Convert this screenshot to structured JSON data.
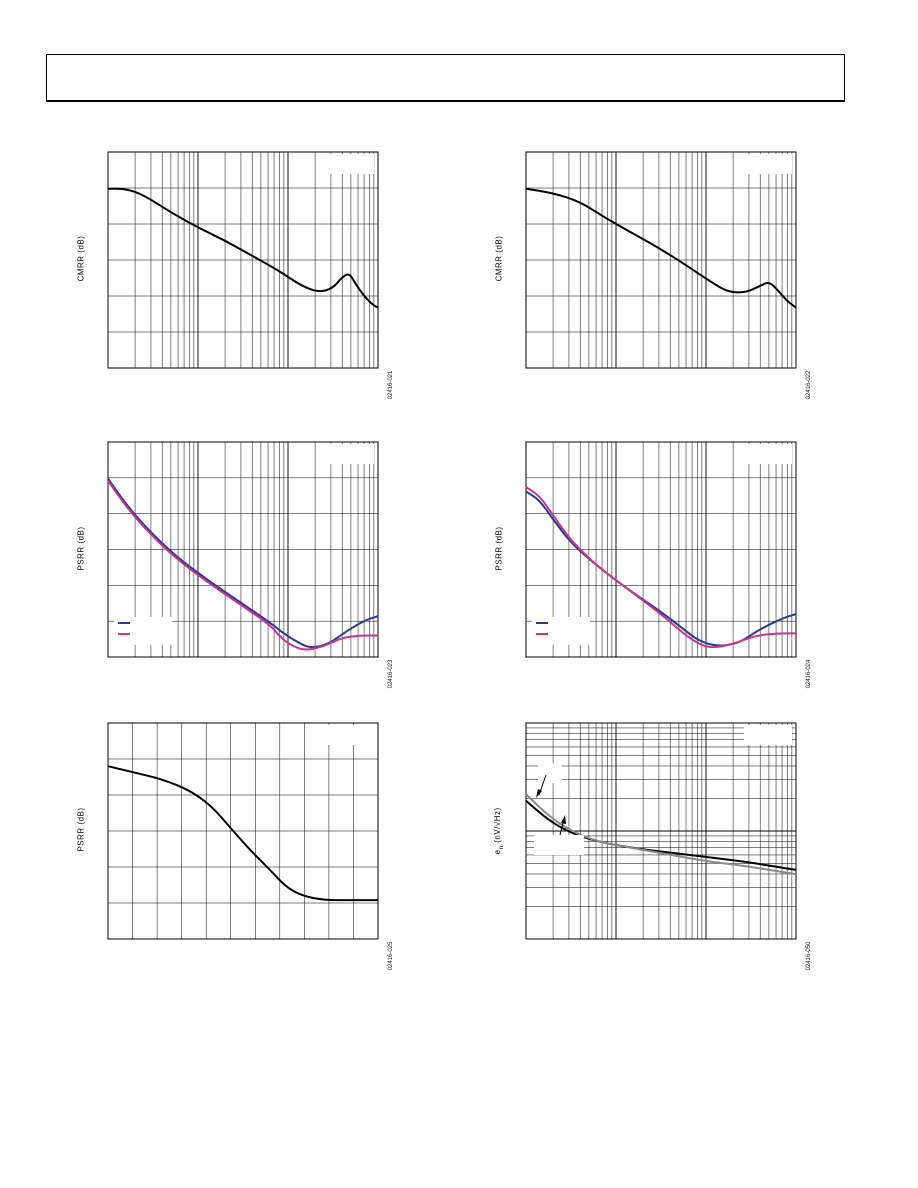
{
  "page": {
    "header": ""
  },
  "chart_data": [
    {
      "id": "c1",
      "type": "line",
      "xscale": "log",
      "decades": 3,
      "ylabel": "CMRR (dB)",
      "figure_code": "02416-021",
      "series": [
        {
          "color": "#000000",
          "y": [
            [
              0,
              0.17
            ],
            [
              0.2,
              0.17
            ],
            [
              0.4,
              0.2
            ],
            [
              0.7,
              0.28
            ],
            [
              1.0,
              0.35
            ],
            [
              1.3,
              0.41
            ],
            [
              1.6,
              0.48
            ],
            [
              1.9,
              0.55
            ],
            [
              2.15,
              0.62
            ],
            [
              2.35,
              0.65
            ],
            [
              2.5,
              0.63
            ],
            [
              2.6,
              0.58
            ],
            [
              2.68,
              0.56
            ],
            [
              2.75,
              0.61
            ],
            [
              2.85,
              0.67
            ],
            [
              2.95,
              0.71
            ],
            [
              3.0,
              0.72
            ]
          ]
        }
      ]
    },
    {
      "id": "c2",
      "type": "line",
      "xscale": "log",
      "decades": 3,
      "ylabel": "CMRR (dB)",
      "figure_code": "02416-022",
      "series": [
        {
          "color": "#000000",
          "y": [
            [
              0,
              0.17
            ],
            [
              0.3,
              0.19
            ],
            [
              0.6,
              0.23
            ],
            [
              0.9,
              0.31
            ],
            [
              1.2,
              0.38
            ],
            [
              1.5,
              0.45
            ],
            [
              1.8,
              0.53
            ],
            [
              2.05,
              0.6
            ],
            [
              2.25,
              0.65
            ],
            [
              2.45,
              0.65
            ],
            [
              2.6,
              0.62
            ],
            [
              2.7,
              0.6
            ],
            [
              2.8,
              0.64
            ],
            [
              2.9,
              0.69
            ],
            [
              3.0,
              0.72
            ]
          ]
        }
      ]
    },
    {
      "id": "c3",
      "type": "line",
      "xscale": "log",
      "decades": 3,
      "ylabel": "PSRR (dB)",
      "figure_code": "02416-023",
      "series": [
        {
          "color": "#2b3a8f",
          "y": [
            [
              0,
              0.17
            ],
            [
              0.2,
              0.29
            ],
            [
              0.45,
              0.41
            ],
            [
              0.75,
              0.53
            ],
            [
              1.1,
              0.64
            ],
            [
              1.45,
              0.74
            ],
            [
              1.8,
              0.84
            ],
            [
              1.95,
              0.89
            ],
            [
              2.1,
              0.93
            ],
            [
              2.25,
              0.96
            ],
            [
              2.45,
              0.94
            ],
            [
              2.65,
              0.88
            ],
            [
              2.85,
              0.83
            ],
            [
              3.0,
              0.81
            ]
          ]
        },
        {
          "color": "#c2368f",
          "y": [
            [
              0,
              0.18
            ],
            [
              0.2,
              0.3
            ],
            [
              0.45,
              0.42
            ],
            [
              0.75,
              0.54
            ],
            [
              1.1,
              0.65
            ],
            [
              1.45,
              0.75
            ],
            [
              1.8,
              0.85
            ],
            [
              1.92,
              0.91
            ],
            [
              2.05,
              0.95
            ],
            [
              2.2,
              0.97
            ],
            [
              2.4,
              0.95
            ],
            [
              2.6,
              0.91
            ],
            [
              2.8,
              0.9
            ],
            [
              3.0,
              0.9
            ]
          ]
        }
      ],
      "legend": [
        {
          "color": "#2b3a8f"
        },
        {
          "color": "#c2368f"
        }
      ]
    },
    {
      "id": "c4",
      "type": "line",
      "xscale": "log",
      "decades": 3,
      "ylabel": "PSRR (dB)",
      "figure_code": "02416-024",
      "series": [
        {
          "color": "#2b3a8f",
          "y": [
            [
              0,
              0.23
            ],
            [
              0.15,
              0.27
            ],
            [
              0.3,
              0.36
            ],
            [
              0.5,
              0.47
            ],
            [
              0.8,
              0.58
            ],
            [
              1.15,
              0.69
            ],
            [
              1.5,
              0.79
            ],
            [
              1.75,
              0.87
            ],
            [
              1.9,
              0.92
            ],
            [
              2.1,
              0.95
            ],
            [
              2.35,
              0.94
            ],
            [
              2.6,
              0.87
            ],
            [
              2.85,
              0.82
            ],
            [
              3.0,
              0.8
            ]
          ]
        },
        {
          "color": "#c2368f",
          "y": [
            [
              0,
              0.21
            ],
            [
              0.15,
              0.25
            ],
            [
              0.3,
              0.34
            ],
            [
              0.5,
              0.46
            ],
            [
              0.8,
              0.58
            ],
            [
              1.15,
              0.69
            ],
            [
              1.5,
              0.8
            ],
            [
              1.72,
              0.88
            ],
            [
              1.88,
              0.93
            ],
            [
              2.05,
              0.96
            ],
            [
              2.3,
              0.94
            ],
            [
              2.55,
              0.9
            ],
            [
              2.8,
              0.89
            ],
            [
              3.0,
              0.89
            ]
          ]
        }
      ],
      "legend": [
        {
          "color": "#2b3a8f"
        },
        {
          "color": "#c2368f"
        }
      ]
    },
    {
      "id": "c5",
      "type": "line",
      "xscale": "linear",
      "xdiv": 11,
      "ydiv": 6,
      "ylabel": "PSRR (dB)",
      "figure_code": "02416-025",
      "series": [
        {
          "color": "#000000",
          "y": [
            [
              0,
              0.2
            ],
            [
              0.1,
              0.23
            ],
            [
              0.2,
              0.26
            ],
            [
              0.3,
              0.31
            ],
            [
              0.38,
              0.38
            ],
            [
              0.45,
              0.48
            ],
            [
              0.52,
              0.58
            ],
            [
              0.6,
              0.68
            ],
            [
              0.66,
              0.76
            ],
            [
              0.72,
              0.8
            ],
            [
              0.8,
              0.82
            ],
            [
              0.9,
              0.82
            ],
            [
              1.0,
              0.82
            ]
          ]
        }
      ]
    },
    {
      "id": "c6",
      "type": "line",
      "xscale": "log",
      "yscale": "log",
      "decades": 3,
      "ylabel": "e",
      "ylabel_sub": "n",
      "ylabel_rest": " (nV/√Hz)",
      "figure_code": "02416-050",
      "series": [
        {
          "color": "#000000",
          "y": [
            [
              0,
              0.36
            ],
            [
              0.25,
              0.45
            ],
            [
              0.5,
              0.51
            ],
            [
              0.8,
              0.55
            ],
            [
              1.2,
              0.58
            ],
            [
              1.6,
              0.6
            ],
            [
              2.0,
              0.62
            ],
            [
              2.4,
              0.64
            ],
            [
              2.7,
              0.66
            ],
            [
              3.0,
              0.68
            ]
          ]
        },
        {
          "color": "#8a8a8a",
          "y": [
            [
              0,
              0.33
            ],
            [
              0.25,
              0.43
            ],
            [
              0.5,
              0.5
            ],
            [
              0.8,
              0.55
            ],
            [
              1.2,
              0.58
            ],
            [
              1.6,
              0.61
            ],
            [
              2.0,
              0.64
            ],
            [
              2.4,
              0.66
            ],
            [
              2.7,
              0.68
            ],
            [
              3.0,
              0.7
            ]
          ]
        }
      ]
    }
  ]
}
